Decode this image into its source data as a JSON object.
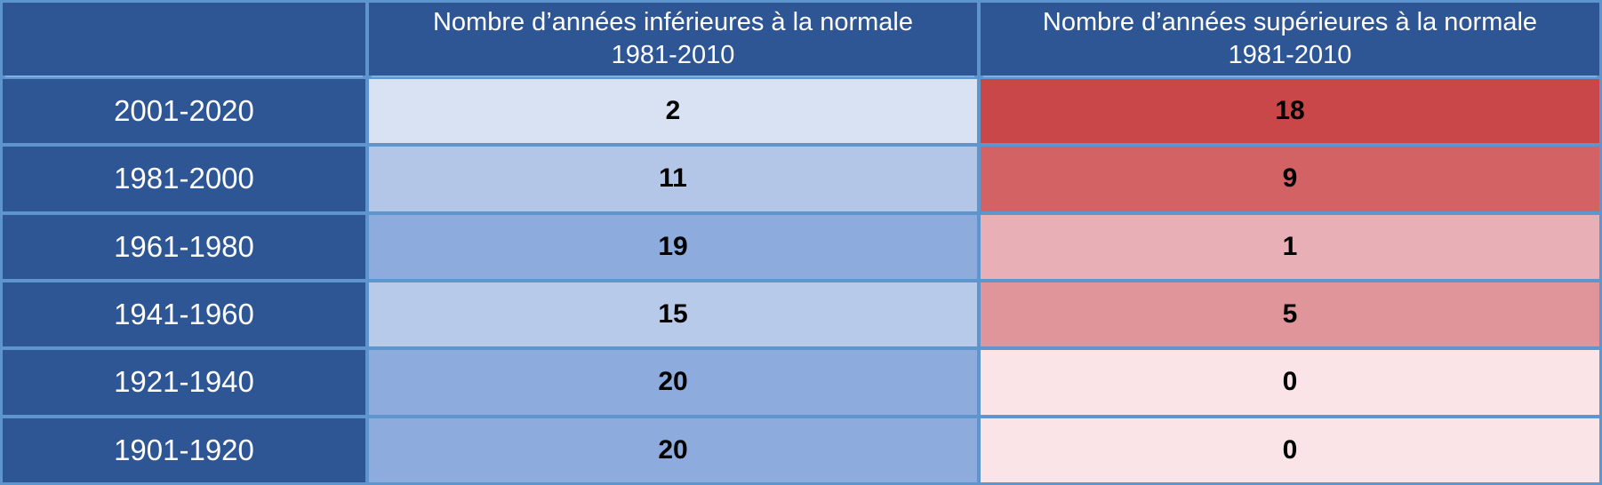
{
  "table": {
    "colors": {
      "border": "#5e95cc",
      "dark_blue": "#2e5694",
      "header_text": "#ffffff",
      "period_text": "#ffffff",
      "value_text": "#000000"
    },
    "header": {
      "below_line1": "Nombre d’années inférieures à la normale",
      "below_line2": "1981-2010",
      "above_line1": "Nombre d’années supérieures à la normale",
      "above_line2": "1981-2010"
    },
    "rows": [
      {
        "period": "2001-2020",
        "below": "2",
        "above": "18",
        "below_bg": "#d9e2f3",
        "above_bg": "#c94748"
      },
      {
        "period": "1981-2000",
        "below": "11",
        "above": "9",
        "below_bg": "#b3c6e8",
        "above_bg": "#d26264"
      },
      {
        "period": "1961-1980",
        "below": "19",
        "above": "1",
        "below_bg": "#8dabdd",
        "above_bg": "#e8b0b6"
      },
      {
        "period": "1941-1960",
        "below": "15",
        "above": "5",
        "below_bg": "#b8caea",
        "above_bg": "#df9599"
      },
      {
        "period": "1921-1940",
        "below": "20",
        "above": "0",
        "below_bg": "#8dabdd",
        "above_bg": "#fbe4e8"
      },
      {
        "period": "1901-1920",
        "below": "20",
        "above": "0",
        "below_bg": "#8dabdd",
        "above_bg": "#fbe4e8"
      }
    ]
  },
  "chart_data": {
    "type": "table",
    "title": "",
    "columns": [
      "",
      "Nombre d’années inférieures à la normale 1981-2010",
      "Nombre d’années supérieures à la normale 1981-2010"
    ],
    "categories": [
      "2001-2020",
      "1981-2000",
      "1961-1980",
      "1941-1960",
      "1921-1940",
      "1901-1920"
    ],
    "series": [
      {
        "name": "Nombre d’années inférieures à la normale 1981-2010",
        "values": [
          2,
          11,
          19,
          15,
          20,
          20
        ]
      },
      {
        "name": "Nombre d’années supérieures à la normale 1981-2010",
        "values": [
          18,
          9,
          1,
          5,
          0,
          0
        ]
      }
    ],
    "layout_hints": {
      "heatmap_shading": "blue intensity scales with below-normal count, red intensity scales with above-normal count",
      "value_range": [
        0,
        20
      ]
    }
  }
}
